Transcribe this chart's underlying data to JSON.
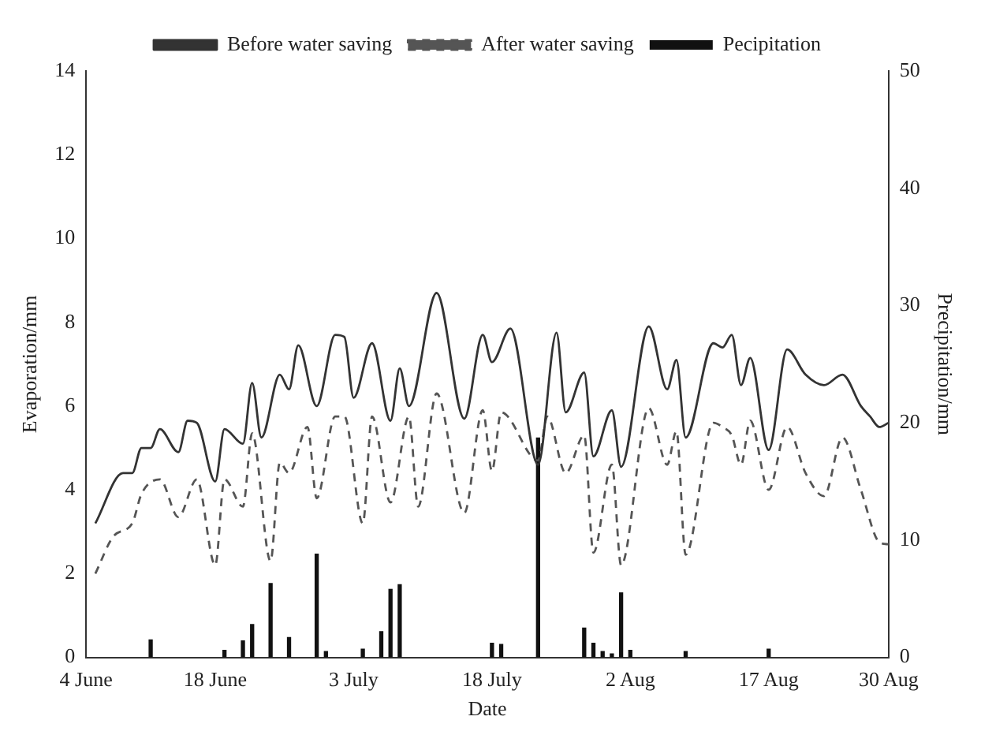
{
  "chart_data": {
    "type": "line",
    "xlabel": "Date",
    "ylabel": "Evaporation/mm",
    "y2label": "Precipitation/mm",
    "xlim": [
      "--06-04",
      "--08-30"
    ],
    "xticks": [
      {
        "value": "--06-04",
        "label": "4 June"
      },
      {
        "value": "--06-18",
        "label": "18 June"
      },
      {
        "value": "--07-03",
        "label": "3 July"
      },
      {
        "value": "--07-18",
        "label": "18 July"
      },
      {
        "value": "--08-02",
        "label": "2 Aug"
      },
      {
        "value": "--08-17",
        "label": "17 Aug"
      },
      {
        "value": "--08-30",
        "label": "30 Aug"
      }
    ],
    "ylim": [
      0,
      14
    ],
    "yticks": [
      0,
      2,
      4,
      6,
      8,
      10,
      12,
      14
    ],
    "y2lim": [
      0,
      50
    ],
    "y2ticks": [
      0,
      10,
      20,
      30,
      40,
      50
    ],
    "grid": false,
    "legend": "top",
    "marker": "none",
    "series": [
      {
        "name": "Before water saving",
        "line_style": "solid",
        "color": "#333333",
        "x": [
          "--06-05",
          "--06-08",
          "--06-09",
          "--06-10",
          "--06-11",
          "--06-12",
          "--06-14",
          "--06-15",
          "--06-16",
          "--06-18",
          "--06-19",
          "--06-21",
          "--06-22",
          "--06-23",
          "--06-25",
          "--06-26",
          "--06-27",
          "--06-29",
          "--07-01",
          "--07-02",
          "--07-03",
          "--07-05",
          "--07-07",
          "--07-08",
          "--07-09",
          "--07-12",
          "--07-15",
          "--07-17",
          "--07-18",
          "--07-20",
          "--07-23",
          "--07-25",
          "--07-26",
          "--07-28",
          "--07-29",
          "--07-31",
          "--08-01",
          "--08-04",
          "--08-06",
          "--08-07",
          "--08-08",
          "--08-11",
          "--08-12",
          "--08-13",
          "--08-14",
          "--08-15",
          "--08-17",
          "--08-19",
          "--08-21",
          "--08-23",
          "--08-25",
          "--08-27",
          "--08-28",
          "--08-29",
          "--08-30"
        ],
        "values": [
          3.2,
          4.4,
          4.4,
          5.0,
          5.0,
          5.45,
          4.9,
          5.65,
          5.6,
          4.2,
          5.45,
          5.1,
          6.55,
          5.25,
          6.75,
          6.4,
          7.45,
          6.0,
          7.7,
          7.65,
          6.2,
          7.5,
          5.65,
          6.9,
          6.0,
          8.7,
          5.7,
          7.7,
          7.05,
          7.85,
          4.6,
          7.75,
          5.85,
          6.8,
          4.8,
          5.9,
          4.55,
          7.9,
          6.4,
          7.1,
          5.25,
          7.5,
          7.4,
          7.7,
          6.5,
          7.15,
          4.95,
          7.35,
          6.75,
          6.5,
          6.75,
          6.0,
          5.75,
          5.5,
          5.6
        ]
      },
      {
        "name": "After water saving",
        "line_style": "dashed",
        "color": "#555555",
        "x": [
          "--06-05",
          "--06-07",
          "--06-09",
          "--06-10",
          "--06-12",
          "--06-14",
          "--06-16",
          "--06-18",
          "--06-19",
          "--06-21",
          "--06-22",
          "--06-24",
          "--06-25",
          "--06-26",
          "--06-28",
          "--06-29",
          "--07-01",
          "--07-02",
          "--07-04",
          "--07-05",
          "--07-07",
          "--07-09",
          "--07-10",
          "--07-12",
          "--07-15",
          "--07-17",
          "--07-18",
          "--07-19",
          "--07-23",
          "--07-24",
          "--07-26",
          "--07-28",
          "--07-29",
          "--07-31",
          "--08-01",
          "--08-04",
          "--08-06",
          "--08-07",
          "--08-08",
          "--08-11",
          "--08-12",
          "--08-13",
          "--08-14",
          "--08-15",
          "--08-17",
          "--08-19",
          "--08-21",
          "--08-23",
          "--08-25",
          "--08-27",
          "--08-29",
          "--08-30"
        ],
        "values": [
          2.0,
          2.9,
          3.2,
          3.9,
          4.25,
          3.35,
          4.25,
          2.2,
          4.25,
          3.6,
          5.35,
          2.3,
          4.65,
          4.4,
          5.5,
          3.8,
          5.75,
          5.75,
          3.2,
          5.75,
          3.7,
          5.75,
          3.6,
          6.3,
          3.45,
          5.9,
          4.45,
          5.85,
          4.7,
          5.75,
          4.4,
          5.3,
          2.5,
          4.6,
          2.2,
          5.95,
          4.6,
          5.4,
          2.45,
          5.6,
          5.5,
          5.3,
          4.6,
          5.65,
          4.0,
          5.5,
          4.4,
          3.85,
          5.25,
          4.0,
          2.75,
          2.7
        ]
      },
      {
        "name": "Pecipitation",
        "type": "bar",
        "axis": "y2",
        "color": "#111111",
        "x": [
          "--06-11",
          "--06-19",
          "--06-21",
          "--06-22",
          "--06-24",
          "--06-26",
          "--06-29",
          "--06-30",
          "--07-04",
          "--07-06",
          "--07-07",
          "--07-08",
          "--07-18",
          "--07-19",
          "--07-23",
          "--07-28",
          "--07-29",
          "--07-30",
          "--07-31",
          "--08-01",
          "--08-02",
          "--08-08",
          "--08-17"
        ],
        "values": [
          1.5,
          0.6,
          1.4,
          2.8,
          6.3,
          1.7,
          8.8,
          0.5,
          0.7,
          2.2,
          5.8,
          6.2,
          1.2,
          1.1,
          18.7,
          2.5,
          1.2,
          0.5,
          0.3,
          5.5,
          0.6,
          0.5,
          0.7
        ]
      }
    ]
  }
}
